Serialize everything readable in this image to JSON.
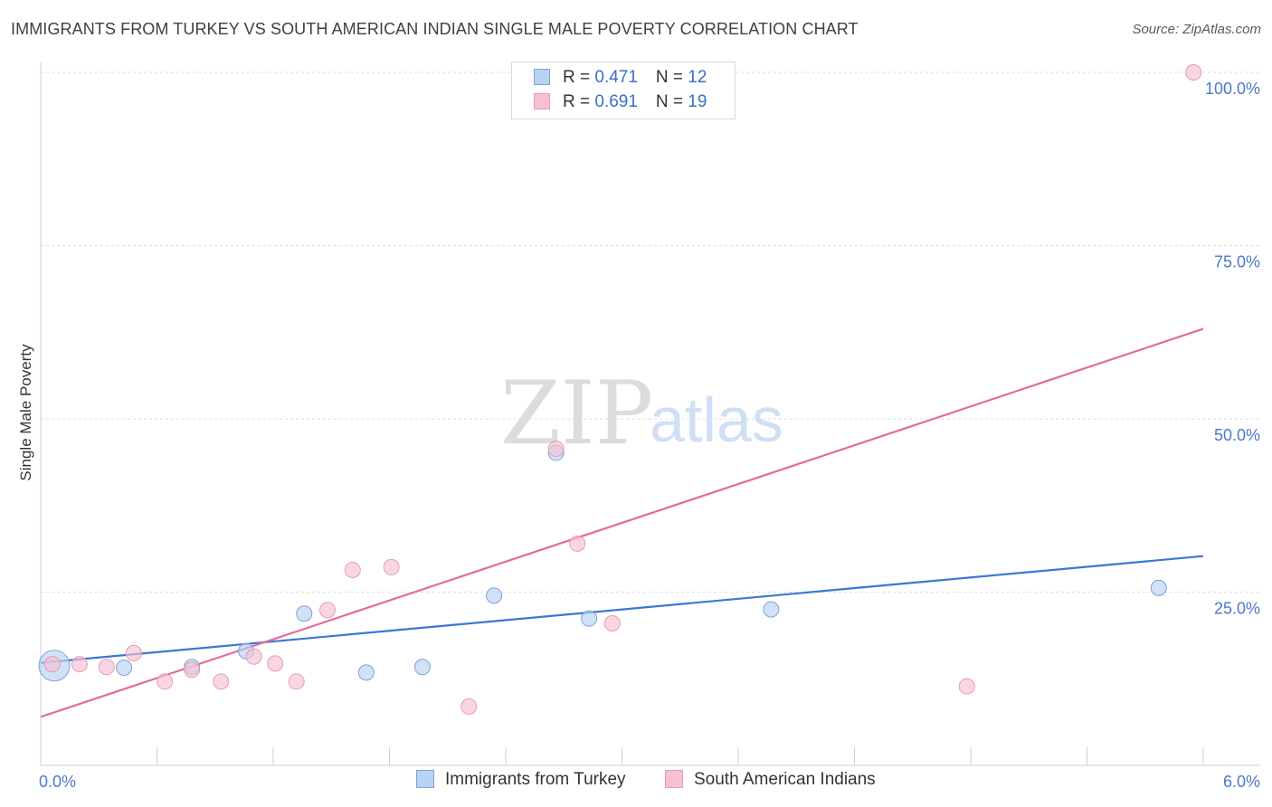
{
  "header": {
    "title": "IMMIGRANTS FROM TURKEY VS SOUTH AMERICAN INDIAN SINGLE MALE POVERTY CORRELATION CHART",
    "source": "Source: ZipAtlas.com"
  },
  "watermark": {
    "zip": "ZIP",
    "atlas": "atlas"
  },
  "legend": {
    "rows": [
      {
        "r_label": "R = ",
        "r_value": "0.471",
        "n_label": "N = ",
        "n_value": "12"
      },
      {
        "r_label": "R = ",
        "r_value": "0.691",
        "n_label": "N = ",
        "n_value": "19"
      }
    ]
  },
  "colors": {
    "blue": "#3a78d4",
    "blue_fill": "#b9d1f2",
    "pink": "#e36b98",
    "pink_fill": "#f7c0d2",
    "grid": "#dddddd",
    "tick_label": "#4a78c9"
  },
  "chart_data": {
    "type": "scatter",
    "title": "IMMIGRANTS FROM TURKEY VS SOUTH AMERICAN INDIAN SINGLE MALE POVERTY CORRELATION CHART",
    "xlabel": "",
    "ylabel": "Single Male Poverty",
    "xlim": [
      0,
      6
    ],
    "ylim": [
      0,
      100
    ],
    "x_tick_labels": [
      "0.0%",
      "6.0%"
    ],
    "y_ticks": [
      25,
      50,
      75,
      100
    ],
    "y_tick_labels": [
      "25.0%",
      "50.0%",
      "75.0%",
      "100.0%"
    ],
    "series": [
      {
        "name": "Immigrants from Turkey",
        "color": "blue",
        "points": [
          {
            "x": 0.07,
            "y": 14.4,
            "big": true
          },
          {
            "x": 0.43,
            "y": 14.1
          },
          {
            "x": 0.78,
            "y": 14.2
          },
          {
            "x": 1.06,
            "y": 16.5
          },
          {
            "x": 1.36,
            "y": 21.9
          },
          {
            "x": 1.68,
            "y": 13.4
          },
          {
            "x": 1.97,
            "y": 14.2
          },
          {
            "x": 2.34,
            "y": 24.5
          },
          {
            "x": 2.66,
            "y": 45.1
          },
          {
            "x": 2.83,
            "y": 21.2
          },
          {
            "x": 3.77,
            "y": 22.5
          },
          {
            "x": 5.77,
            "y": 25.6
          }
        ],
        "trend": {
          "x0": 0.0,
          "y0": 14.8,
          "x1": 6.0,
          "y1": 30.2
        }
      },
      {
        "name": "South American Indians",
        "color": "pink",
        "points": [
          {
            "x": 0.06,
            "y": 14.6
          },
          {
            "x": 0.2,
            "y": 14.6
          },
          {
            "x": 0.34,
            "y": 14.2
          },
          {
            "x": 0.48,
            "y": 16.2
          },
          {
            "x": 0.64,
            "y": 12.1
          },
          {
            "x": 0.78,
            "y": 13.8
          },
          {
            "x": 0.93,
            "y": 12.1
          },
          {
            "x": 1.1,
            "y": 15.7
          },
          {
            "x": 1.21,
            "y": 14.7
          },
          {
            "x": 1.32,
            "y": 12.1
          },
          {
            "x": 1.48,
            "y": 22.4
          },
          {
            "x": 1.61,
            "y": 28.2
          },
          {
            "x": 1.81,
            "y": 28.6
          },
          {
            "x": 2.21,
            "y": 8.5
          },
          {
            "x": 2.66,
            "y": 45.7
          },
          {
            "x": 2.77,
            "y": 32.0
          },
          {
            "x": 2.95,
            "y": 20.5
          },
          {
            "x": 4.78,
            "y": 11.4
          },
          {
            "x": 5.95,
            "y": 100.0
          }
        ],
        "trend": {
          "x0": 0.0,
          "y0": 7.0,
          "x1": 6.0,
          "y1": 63.0
        }
      }
    ]
  },
  "bottom_legend": {
    "items": [
      {
        "label": "Immigrants from Turkey"
      },
      {
        "label": "South American Indians"
      }
    ]
  }
}
